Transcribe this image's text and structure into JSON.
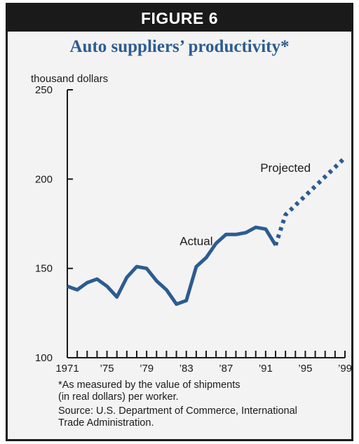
{
  "figure_label": "FIGURE 6",
  "chart_data": {
    "type": "line",
    "title": "Auto suppliers’ productivity*",
    "ylabel": "thousand dollars",
    "xlabel": "",
    "ylim": [
      100,
      250
    ],
    "xlim": [
      1971,
      1999
    ],
    "y_ticks": [
      100,
      150,
      200,
      250
    ],
    "x_ticks": [
      {
        "value": 1971,
        "label": "1971"
      },
      {
        "value": 1975,
        "label": "’75"
      },
      {
        "value": 1979,
        "label": "’79"
      },
      {
        "value": 1983,
        "label": "’83"
      },
      {
        "value": 1987,
        "label": "’87"
      },
      {
        "value": 1991,
        "label": "’91"
      },
      {
        "value": 1995,
        "label": "’95"
      },
      {
        "value": 1999,
        "label": "’99"
      }
    ],
    "grid": false,
    "series": [
      {
        "name": "Actual",
        "style": "solid",
        "x": [
          1971,
          1972,
          1973,
          1974,
          1975,
          1976,
          1977,
          1978,
          1979,
          1980,
          1981,
          1982,
          1983,
          1984,
          1985,
          1986,
          1987,
          1988,
          1989,
          1990,
          1991,
          1992
        ],
        "y": [
          140,
          138,
          142,
          144,
          140,
          134,
          145,
          151,
          150,
          143,
          138,
          130,
          132,
          151,
          156,
          164,
          169,
          169,
          170,
          173,
          172,
          163
        ]
      },
      {
        "name": "Projected",
        "style": "dotted",
        "x": [
          1992,
          1993,
          1999
        ],
        "y": [
          163,
          180,
          212
        ]
      }
    ],
    "annotations": [
      {
        "text": "Actual",
        "x": 1984,
        "y": 163
      },
      {
        "text": "Projected",
        "x": 1993,
        "y": 204
      }
    ],
    "colors": {
      "line": "#2c5c91",
      "axis": "#1a1a1a"
    }
  },
  "footnote": "*As measured by the value of shipments\n(in real dollars) per worker.",
  "source": "Source: U.S. Department of Commerce, International\nTrade Administration."
}
